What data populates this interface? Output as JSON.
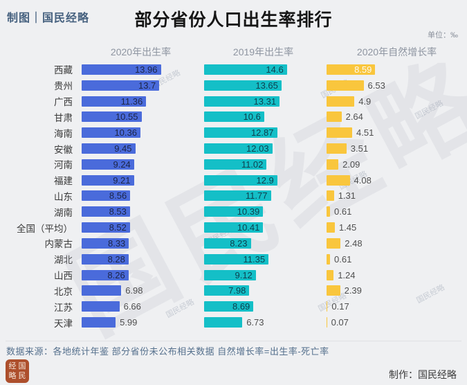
{
  "meta": {
    "credit": "制图｜国民经略",
    "title": "部分省份人口出生率排行",
    "unit": "单位：‰"
  },
  "chart_data": {
    "type": "bar",
    "orientation": "horizontal",
    "title": "部分省份人口出生率排行",
    "unit": "‰",
    "value_axis_note": "values shown as data labels, no axis gridlines",
    "columns": [
      "2020年出生率",
      "2019年出生率",
      "2020年自然增长率"
    ],
    "categories": [
      "西藏",
      "贵州",
      "广西",
      "甘肃",
      "海南",
      "安徽",
      "河南",
      "福建",
      "山东",
      "湖南",
      "全国（平均）",
      "内蒙古",
      "湖北",
      "山西",
      "北京",
      "江苏",
      "天津"
    ],
    "series": [
      {
        "name": "2020年出生率",
        "color": "#4a6bdb",
        "values": [
          13.96,
          13.7,
          11.36,
          10.55,
          10.36,
          9.45,
          9.24,
          9.21,
          8.56,
          8.53,
          8.52,
          8.33,
          8.28,
          8.26,
          6.98,
          6.66,
          5.99
        ]
      },
      {
        "name": "2019年出生率",
        "color": "#14bfc7",
        "values": [
          14.6,
          13.65,
          13.31,
          10.6,
          12.87,
          12.03,
          11.02,
          12.9,
          11.77,
          10.39,
          10.41,
          8.23,
          11.35,
          9.12,
          7.98,
          8.69,
          6.73
        ]
      },
      {
        "name": "2020年自然增长率",
        "color": "#f9c63d",
        "values": [
          8.59,
          6.53,
          4.9,
          2.64,
          4.51,
          3.51,
          2.09,
          4.08,
          1.31,
          0.61,
          1.45,
          2.48,
          0.61,
          1.24,
          2.39,
          0.17,
          0.07
        ]
      }
    ]
  },
  "footer": {
    "source": "数据来源：各地统计年鉴  部分省份未公布相关数据  自然增长率=出生率-死亡率",
    "maker": "制作：国民经略",
    "seal_chars": [
      "经",
      "国",
      "略",
      "民"
    ]
  },
  "watermark": {
    "text": "国民经略"
  }
}
